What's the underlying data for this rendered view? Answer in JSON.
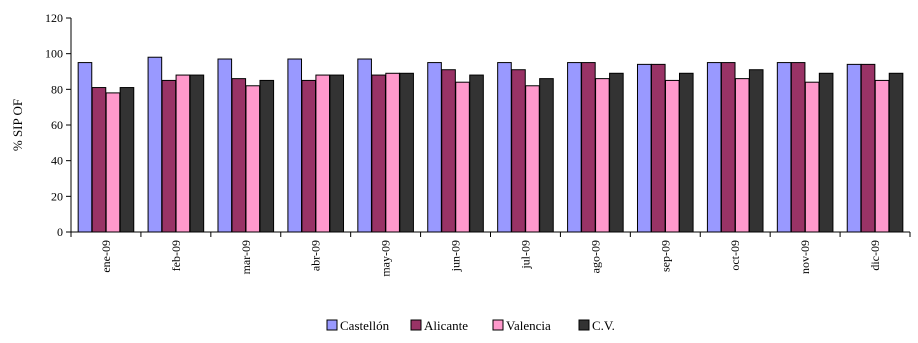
{
  "chart_data": {
    "type": "bar",
    "title": "",
    "xlabel": "",
    "ylabel": "% SIP OF",
    "ylim": [
      0,
      120
    ],
    "yticks": [
      0,
      20,
      40,
      60,
      80,
      100,
      120
    ],
    "grid": false,
    "legend_position": "bottom",
    "categories": [
      "ene-09",
      "feb-09",
      "mar-09",
      "abr-09",
      "may-09",
      "jun-09",
      "jul-09",
      "ago-09",
      "sep-09",
      "oct-09",
      "nov-09",
      "dic-09"
    ],
    "series": [
      {
        "name": "Castellón",
        "color": "#9999ff",
        "values": [
          95,
          98,
          97,
          97,
          97,
          95,
          95,
          95,
          94,
          95,
          95,
          94
        ]
      },
      {
        "name": "Alicante",
        "color": "#993366",
        "values": [
          81,
          85,
          86,
          85,
          88,
          91,
          91,
          95,
          94,
          95,
          95,
          94
        ]
      },
      {
        "name": "Valencia",
        "color": "#ff99cc",
        "values": [
          78,
          88,
          82,
          88,
          89,
          84,
          82,
          86,
          85,
          86,
          84,
          85
        ]
      },
      {
        "name": "C.V.",
        "color": "#333333",
        "values": [
          81,
          88,
          85,
          88,
          89,
          88,
          86,
          89,
          89,
          91,
          89,
          89
        ]
      }
    ]
  }
}
